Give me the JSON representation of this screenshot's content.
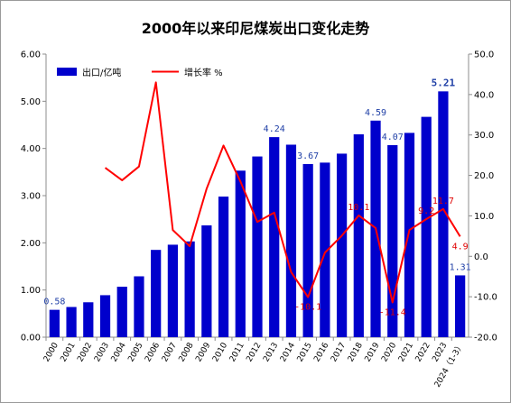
{
  "chart_data": {
    "type": "bar+line",
    "title": "2000年以来印尼煤炭出口变化走势",
    "categories": [
      "2000",
      "2001",
      "2002",
      "2003",
      "2004",
      "2005",
      "2006",
      "2007",
      "2008",
      "2009",
      "2010",
      "2011",
      "2012",
      "2013",
      "2014",
      "2015",
      "2016",
      "2017",
      "2018",
      "2019",
      "2020",
      "2021",
      "2022",
      "2023",
      "2024（1-3）"
    ],
    "series": [
      {
        "name": "出口/亿吨",
        "type": "bar",
        "axis": "left",
        "color": "#0000cc",
        "values": [
          0.58,
          0.64,
          0.74,
          0.89,
          1.07,
          1.29,
          1.85,
          1.96,
          2.03,
          2.37,
          2.98,
          3.53,
          3.83,
          4.24,
          4.08,
          3.67,
          3.7,
          3.89,
          4.3,
          4.59,
          4.07,
          4.33,
          4.67,
          5.21,
          1.31
        ]
      },
      {
        "name": "增长率 %",
        "type": "line",
        "axis": "right",
        "color": "#ff0000",
        "values": [
          null,
          null,
          null,
          21.9,
          18.8,
          22.2,
          43.0,
          6.5,
          2.5,
          16.7,
          27.4,
          18.5,
          8.5,
          10.8,
          -3.9,
          -10.1,
          0.9,
          5.1,
          10.1,
          7.0,
          -11.4,
          6.5,
          9.2,
          11.7,
          4.9
        ]
      }
    ],
    "bar_labels": [
      {
        "index": 0,
        "text": "0.58"
      },
      {
        "index": 13,
        "text": "4.24"
      },
      {
        "index": 15,
        "text": "3.67"
      },
      {
        "index": 19,
        "text": "4.59"
      },
      {
        "index": 20,
        "text": "4.07"
      },
      {
        "index": 23,
        "text": "5.21",
        "bold": true
      },
      {
        "index": 24,
        "text": "1.31"
      }
    ],
    "line_labels": [
      {
        "index": 15,
        "text": "-10.1"
      },
      {
        "index": 18,
        "text": "10.1"
      },
      {
        "index": 20,
        "text": "-11.4"
      },
      {
        "index": 22,
        "text": "9.2"
      },
      {
        "index": 23,
        "text": "11.7"
      },
      {
        "index": 24,
        "text": "4.9"
      }
    ],
    "y_left": {
      "min": 0,
      "max": 6,
      "step": 1,
      "tick_labels": [
        "0.00",
        "1.00",
        "2.00",
        "3.00",
        "4.00",
        "5.00",
        "6.00"
      ]
    },
    "y_right": {
      "min": -20,
      "max": 50,
      "step": 10,
      "tick_labels": [
        "-20.0",
        "-10.0",
        "0.0",
        "10.0",
        "20.0",
        "30.0",
        "40.0",
        "50.0"
      ]
    },
    "legend": {
      "position": "top-left",
      "items": [
        "出口/亿吨",
        "增长率 %"
      ]
    },
    "grid": false
  }
}
